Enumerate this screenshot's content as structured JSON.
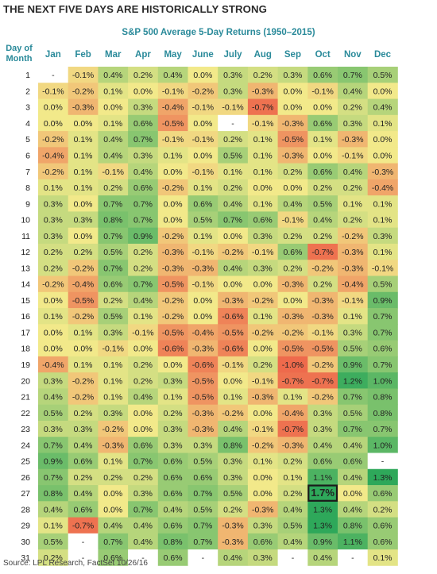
{
  "header": {
    "title": "THE NEXT FIVE DAYS ARE HISTORICALLY STRONG",
    "subtitle": "S&P 500 Average 5-Day Returns (1950–2015)"
  },
  "source": "Source: LPL Research, FactSet   10/26/16",
  "chart_data": {
    "type": "heatmap",
    "title": "S&P 500 Average 5-Day Returns (1950–2015)",
    "row_header": "Day of Month",
    "columns": [
      "Jan",
      "Feb",
      "Mar",
      "Apr",
      "May",
      "June",
      "July",
      "Aug",
      "Sep",
      "Oct",
      "Nov",
      "Dec"
    ],
    "rows": [
      "1",
      "2",
      "3",
      "4",
      "5",
      "6",
      "7",
      "8",
      "9",
      "10",
      "11",
      "12",
      "13",
      "14",
      "15",
      "16",
      "17",
      "18",
      "19",
      "20",
      "21",
      "22",
      "23",
      "24",
      "25",
      "26",
      "27",
      "28",
      "29",
      "30",
      "31"
    ],
    "values": [
      [
        "-",
        "-0.1%",
        "0.4%",
        "0.2%",
        "0.4%",
        "0.0%",
        "0.3%",
        "0.2%",
        "0.3%",
        "0.6%",
        "0.7%",
        "0.5%"
      ],
      [
        "-0.1%",
        "-0.2%",
        "0.1%",
        "0.0%",
        "-0.1%",
        "-0.2%",
        "0.3%",
        "-0.3%",
        "0.0%",
        "-0.1%",
        "0.4%",
        "0.0%"
      ],
      [
        "0.0%",
        "-0.3%",
        "0.0%",
        "0.3%",
        "-0.4%",
        "-0.1%",
        "-0.1%",
        "-0.7%",
        "0.0%",
        "0.0%",
        "0.2%",
        "0.4%"
      ],
      [
        "0.0%",
        "0.0%",
        "0.1%",
        "0.6%",
        "-0.5%",
        "0.0%",
        "-",
        "-0.1%",
        "-0.3%",
        "0.6%",
        "0.3%",
        "0.1%"
      ],
      [
        "-0.2%",
        "0.1%",
        "0.4%",
        "0.7%",
        "-0.1%",
        "-0.1%",
        "0.2%",
        "0.1%",
        "-0.5%",
        "0.1%",
        "-0.3%",
        "0.0%"
      ],
      [
        "-0.4%",
        "0.1%",
        "0.4%",
        "0.3%",
        "0.1%",
        "0.0%",
        "0.5%",
        "0.1%",
        "-0.3%",
        "0.0%",
        "-0.1%",
        "0.0%"
      ],
      [
        "-0.2%",
        "0.1%",
        "-0.1%",
        "0.4%",
        "0.0%",
        "-0.1%",
        "0.1%",
        "0.1%",
        "0.2%",
        "0.6%",
        "0.4%",
        "-0.3%"
      ],
      [
        "0.1%",
        "0.1%",
        "0.2%",
        "0.6%",
        "-0.2%",
        "0.1%",
        "0.2%",
        "0.0%",
        "0.0%",
        "0.2%",
        "0.2%",
        "-0.4%"
      ],
      [
        "0.3%",
        "0.0%",
        "0.7%",
        "0.7%",
        "0.0%",
        "0.6%",
        "0.4%",
        "0.1%",
        "0.4%",
        "0.5%",
        "0.1%",
        "0.1%"
      ],
      [
        "0.3%",
        "0.3%",
        "0.8%",
        "0.7%",
        "0.0%",
        "0.5%",
        "0.7%",
        "0.6%",
        "-0.1%",
        "0.4%",
        "0.2%",
        "0.1%"
      ],
      [
        "0.3%",
        "0.0%",
        "0.7%",
        "0.9%",
        "-0.2%",
        "0.1%",
        "0.0%",
        "0.3%",
        "0.2%",
        "0.2%",
        "-0.2%",
        "0.3%"
      ],
      [
        "0.2%",
        "0.2%",
        "0.5%",
        "0.2%",
        "-0.3%",
        "-0.1%",
        "-0.2%",
        "-0.1%",
        "0.6%",
        "-0.7%",
        "-0.3%",
        "0.1%"
      ],
      [
        "0.2%",
        "-0.2%",
        "0.7%",
        "0.2%",
        "-0.3%",
        "-0.3%",
        "0.4%",
        "0.3%",
        "0.2%",
        "-0.2%",
        "-0.3%",
        "-0.1%"
      ],
      [
        "-0.2%",
        "-0.4%",
        "0.6%",
        "0.7%",
        "-0.5%",
        "-0.1%",
        "0.0%",
        "0.0%",
        "-0.3%",
        "0.2%",
        "-0.4%",
        "0.5%"
      ],
      [
        "0.0%",
        "-0.5%",
        "0.2%",
        "0.4%",
        "-0.2%",
        "0.0%",
        "-0.3%",
        "-0.2%",
        "0.0%",
        "-0.3%",
        "-0.1%",
        "0.9%"
      ],
      [
        "0.1%",
        "-0.2%",
        "0.5%",
        "0.1%",
        "-0.2%",
        "0.0%",
        "-0.6%",
        "0.1%",
        "-0.3%",
        "-0.3%",
        "0.1%",
        "0.7%"
      ],
      [
        "0.0%",
        "0.1%",
        "0.3%",
        "-0.1%",
        "-0.5%",
        "-0.4%",
        "-0.5%",
        "-0.2%",
        "-0.2%",
        "-0.1%",
        "0.3%",
        "0.7%"
      ],
      [
        "0.0%",
        "0.0%",
        "-0.1%",
        "0.0%",
        "-0.6%",
        "-0.3%",
        "-0.6%",
        "0.0%",
        "-0.5%",
        "-0.5%",
        "0.5%",
        "0.6%"
      ],
      [
        "-0.4%",
        "0.1%",
        "0.1%",
        "0.2%",
        "0.0%",
        "-0.6%",
        "-0.1%",
        "0.2%",
        "-1.0%",
        "-0.2%",
        "0.9%",
        "0.7%"
      ],
      [
        "0.3%",
        "-0.2%",
        "0.1%",
        "0.2%",
        "0.3%",
        "-0.5%",
        "0.0%",
        "-0.1%",
        "-0.7%",
        "-0.7%",
        "1.2%",
        "1.0%"
      ],
      [
        "0.4%",
        "-0.2%",
        "0.1%",
        "0.4%",
        "0.1%",
        "-0.5%",
        "0.1%",
        "-0.3%",
        "0.1%",
        "-0.2%",
        "0.7%",
        "0.8%"
      ],
      [
        "0.5%",
        "0.2%",
        "0.3%",
        "0.0%",
        "0.2%",
        "-0.3%",
        "-0.2%",
        "0.0%",
        "-0.4%",
        "0.3%",
        "0.5%",
        "0.8%"
      ],
      [
        "0.3%",
        "0.3%",
        "-0.2%",
        "0.0%",
        "0.3%",
        "-0.3%",
        "0.4%",
        "-0.1%",
        "-0.7%",
        "0.3%",
        "0.7%",
        "0.7%"
      ],
      [
        "0.7%",
        "0.4%",
        "-0.3%",
        "0.6%",
        "0.3%",
        "0.3%",
        "0.8%",
        "-0.2%",
        "-0.3%",
        "0.4%",
        "0.4%",
        "1.0%"
      ],
      [
        "0.9%",
        "0.6%",
        "0.1%",
        "0.7%",
        "0.6%",
        "0.5%",
        "0.3%",
        "0.1%",
        "0.2%",
        "0.6%",
        "0.6%",
        "-"
      ],
      [
        "0.7%",
        "0.2%",
        "0.2%",
        "0.2%",
        "0.6%",
        "0.6%",
        "0.3%",
        "0.0%",
        "0.1%",
        "1.1%",
        "0.4%",
        "1.3%"
      ],
      [
        "0.8%",
        "0.4%",
        "0.0%",
        "0.3%",
        "0.6%",
        "0.7%",
        "0.5%",
        "0.0%",
        "0.2%",
        "1.7%",
        "0.0%",
        "0.6%"
      ],
      [
        "0.4%",
        "0.6%",
        "0.0%",
        "0.7%",
        "0.4%",
        "0.5%",
        "0.2%",
        "-0.3%",
        "0.4%",
        "1.3%",
        "0.4%",
        "0.2%"
      ],
      [
        "0.1%",
        "-0.7%",
        "0.4%",
        "0.4%",
        "0.6%",
        "0.7%",
        "-0.3%",
        "0.3%",
        "0.5%",
        "1.3%",
        "0.8%",
        "0.6%"
      ],
      [
        "0.5%",
        "-",
        "0.7%",
        "0.4%",
        "0.8%",
        "0.7%",
        "-0.3%",
        "0.6%",
        "0.4%",
        "0.9%",
        "1.1%",
        "0.6%"
      ],
      [
        "0.2%",
        "-",
        "0.6%",
        "-",
        "0.6%",
        "-",
        "0.4%",
        "0.3%",
        "-",
        "0.4%",
        "-",
        "0.1%"
      ]
    ],
    "highlight": {
      "row": "27",
      "column": "Oct",
      "value": "1.7%"
    },
    "color_scale": {
      "low": "#ee6a4c",
      "mid": "#f2e98a",
      "high": "#2ea85a"
    }
  }
}
